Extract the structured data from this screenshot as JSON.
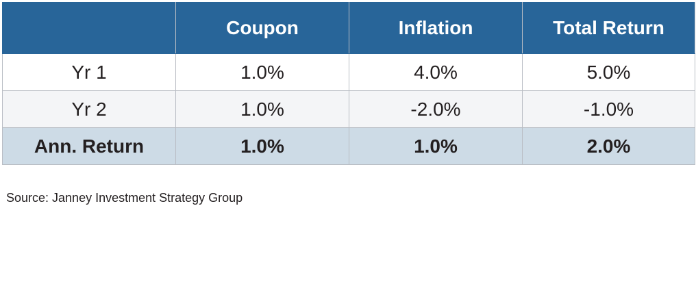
{
  "table": {
    "headers": [
      "Coupon",
      "Inflation",
      "Total Return"
    ],
    "rows": [
      [
        "Yr 1",
        "1.0%",
        "4.0%",
        "5.0%"
      ],
      [
        "Yr 2",
        "1.0%",
        "-2.0%",
        "-1.0%"
      ],
      [
        "Ann. Return",
        "1.0%",
        "1.0%",
        "2.0%"
      ]
    ]
  },
  "source": "Source: Janney Investment Strategy Group"
}
